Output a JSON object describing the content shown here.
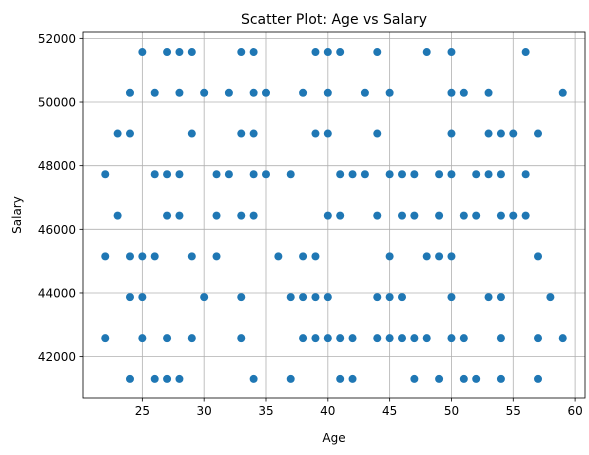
{
  "chart_data": {
    "type": "scatter",
    "title": "Scatter Plot: Age vs Salary",
    "xlabel": "Age",
    "ylabel": "Salary",
    "xlim": [
      20.2,
      60.8
    ],
    "ylim": [
      40700,
      52200
    ],
    "xticks": [
      25,
      30,
      35,
      40,
      45,
      50,
      55,
      60
    ],
    "yticks": [
      42000,
      44000,
      46000,
      48000,
      50000,
      52000
    ],
    "grid": true,
    "marker_color": "#1f77b4",
    "points": [
      [
        25,
        51570
      ],
      [
        27,
        51570
      ],
      [
        28,
        51570
      ],
      [
        29,
        51570
      ],
      [
        33,
        51570
      ],
      [
        34,
        51570
      ],
      [
        39,
        51570
      ],
      [
        40,
        51570
      ],
      [
        41,
        51570
      ],
      [
        44,
        51570
      ],
      [
        48,
        51570
      ],
      [
        50,
        51570
      ],
      [
        56,
        51570
      ],
      [
        24,
        50290
      ],
      [
        26,
        50290
      ],
      [
        28,
        50290
      ],
      [
        30,
        50290
      ],
      [
        32,
        50290
      ],
      [
        34,
        50290
      ],
      [
        35,
        50290
      ],
      [
        38,
        50290
      ],
      [
        40,
        50290
      ],
      [
        43,
        50290
      ],
      [
        45,
        50290
      ],
      [
        50,
        50290
      ],
      [
        51,
        50290
      ],
      [
        53,
        50290
      ],
      [
        59,
        50290
      ],
      [
        23,
        49010
      ],
      [
        24,
        49010
      ],
      [
        29,
        49010
      ],
      [
        33,
        49010
      ],
      [
        34,
        49010
      ],
      [
        39,
        49010
      ],
      [
        40,
        49010
      ],
      [
        44,
        49010
      ],
      [
        50,
        49010
      ],
      [
        53,
        49010
      ],
      [
        54,
        49010
      ],
      [
        55,
        49010
      ],
      [
        57,
        49010
      ],
      [
        22,
        47730
      ],
      [
        26,
        47730
      ],
      [
        27,
        47730
      ],
      [
        28,
        47730
      ],
      [
        31,
        47730
      ],
      [
        32,
        47730
      ],
      [
        34,
        47730
      ],
      [
        35,
        47730
      ],
      [
        37,
        47730
      ],
      [
        41,
        47730
      ],
      [
        42,
        47730
      ],
      [
        43,
        47730
      ],
      [
        45,
        47730
      ],
      [
        46,
        47730
      ],
      [
        47,
        47730
      ],
      [
        49,
        47730
      ],
      [
        50,
        47730
      ],
      [
        52,
        47730
      ],
      [
        53,
        47730
      ],
      [
        54,
        47730
      ],
      [
        56,
        47730
      ],
      [
        23,
        46430
      ],
      [
        27,
        46430
      ],
      [
        28,
        46430
      ],
      [
        31,
        46430
      ],
      [
        33,
        46430
      ],
      [
        34,
        46430
      ],
      [
        40,
        46430
      ],
      [
        41,
        46430
      ],
      [
        44,
        46430
      ],
      [
        46,
        46430
      ],
      [
        47,
        46430
      ],
      [
        49,
        46430
      ],
      [
        51,
        46430
      ],
      [
        52,
        46430
      ],
      [
        54,
        46430
      ],
      [
        55,
        46430
      ],
      [
        56,
        46430
      ],
      [
        22,
        45150
      ],
      [
        24,
        45150
      ],
      [
        25,
        45150
      ],
      [
        26,
        45150
      ],
      [
        29,
        45150
      ],
      [
        31,
        45150
      ],
      [
        36,
        45150
      ],
      [
        38,
        45150
      ],
      [
        39,
        45150
      ],
      [
        45,
        45150
      ],
      [
        48,
        45150
      ],
      [
        49,
        45150
      ],
      [
        50,
        45150
      ],
      [
        57,
        45150
      ],
      [
        24,
        43870
      ],
      [
        25,
        43870
      ],
      [
        30,
        43870
      ],
      [
        33,
        43870
      ],
      [
        37,
        43870
      ],
      [
        38,
        43870
      ],
      [
        39,
        43870
      ],
      [
        40,
        43870
      ],
      [
        44,
        43870
      ],
      [
        45,
        43870
      ],
      [
        46,
        43870
      ],
      [
        50,
        43870
      ],
      [
        53,
        43870
      ],
      [
        54,
        43870
      ],
      [
        58,
        43870
      ],
      [
        22,
        42580
      ],
      [
        25,
        42580
      ],
      [
        27,
        42580
      ],
      [
        29,
        42580
      ],
      [
        33,
        42580
      ],
      [
        38,
        42580
      ],
      [
        39,
        42580
      ],
      [
        40,
        42580
      ],
      [
        41,
        42580
      ],
      [
        42,
        42580
      ],
      [
        44,
        42580
      ],
      [
        45,
        42580
      ],
      [
        46,
        42580
      ],
      [
        47,
        42580
      ],
      [
        48,
        42580
      ],
      [
        50,
        42580
      ],
      [
        51,
        42580
      ],
      [
        54,
        42580
      ],
      [
        57,
        42580
      ],
      [
        59,
        42580
      ],
      [
        24,
        41300
      ],
      [
        26,
        41300
      ],
      [
        27,
        41300
      ],
      [
        28,
        41300
      ],
      [
        34,
        41300
      ],
      [
        37,
        41300
      ],
      [
        41,
        41300
      ],
      [
        42,
        41300
      ],
      [
        47,
        41300
      ],
      [
        49,
        41300
      ],
      [
        51,
        41300
      ],
      [
        52,
        41300
      ],
      [
        54,
        41300
      ],
      [
        57,
        41300
      ]
    ]
  }
}
